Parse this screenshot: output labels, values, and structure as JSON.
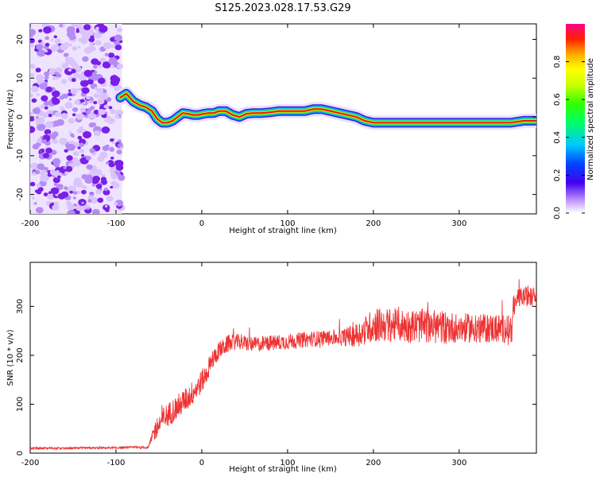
{
  "figure": {
    "title": "S125.2023.028.17.53.G29"
  },
  "chart_data": [
    {
      "type": "heatmap",
      "title": "",
      "xlabel": "Height of straight line (km)",
      "ylabel": "Frequency (Hz)",
      "xlim": [
        -200,
        390
      ],
      "ylim": [
        -25,
        24
      ],
      "xticks": [
        -200,
        -100,
        0,
        100,
        200,
        300
      ],
      "xtick_labels": [
        "-200",
        "-100",
        "0",
        "100",
        "200",
        "300"
      ],
      "yticks": [
        -20,
        -10,
        0,
        10,
        20
      ],
      "ytick_labels": [
        "-20",
        "-10",
        "0",
        "10",
        "20"
      ],
      "colorbar": {
        "label": "Normalized spectral amplitude",
        "range": [
          0,
          1
        ],
        "ticks": [
          0.0,
          0.2,
          0.4,
          0.6,
          0.8
        ],
        "tick_labels": [
          "0.0",
          "0.2",
          "0.4",
          "0.6",
          "0.8"
        ],
        "colormap": "rainbow"
      },
      "noise_region": {
        "x": [
          -200,
          -93
        ],
        "level": 0.25
      },
      "peak_frequency_trace": {
        "x": [
          -95,
          -88,
          -80,
          -72,
          -65,
          -58,
          -52,
          -46,
          -40,
          -34,
          -28,
          -22,
          -16,
          -10,
          -4,
          2,
          8,
          14,
          20,
          28,
          36,
          44,
          52,
          60,
          70,
          80,
          90,
          100,
          110,
          120,
          130,
          140,
          150,
          160,
          170,
          180,
          190,
          200,
          210,
          220,
          235,
          250,
          265,
          280,
          300,
          320,
          340,
          360,
          375,
          390
        ],
        "y": [
          5.0,
          6.0,
          4.0,
          3.0,
          2.5,
          1.5,
          -0.5,
          -1.5,
          -1.5,
          -1.0,
          0.0,
          1.0,
          0.8,
          0.5,
          0.5,
          0.8,
          1.0,
          1.0,
          1.5,
          1.5,
          0.5,
          0.0,
          0.8,
          1.0,
          1.0,
          1.2,
          1.5,
          1.5,
          1.5,
          1.5,
          2.0,
          2.0,
          1.5,
          1.0,
          0.5,
          0.0,
          -1.0,
          -1.5,
          -1.5,
          -1.5,
          -1.5,
          -1.5,
          -1.5,
          -1.5,
          -1.5,
          -1.5,
          -1.5,
          -1.5,
          -1.0,
          -1.0
        ]
      }
    },
    {
      "type": "line",
      "title": "",
      "xlabel": "Height of straight line (km)",
      "ylabel": "SNR (10 * v/v)",
      "xlim": [
        -200,
        390
      ],
      "ylim": [
        0,
        390
      ],
      "xticks": [
        -200,
        -100,
        0,
        100,
        200,
        300
      ],
      "xtick_labels": [
        "-200",
        "-100",
        "0",
        "100",
        "200",
        "300"
      ],
      "yticks": [
        0,
        100,
        200,
        300
      ],
      "ytick_labels": [
        "0",
        "100",
        "200",
        "300"
      ],
      "series": [
        {
          "color": "#ee3333",
          "x": [
            -200,
            -150,
            -100,
            -62,
            -55,
            -45,
            -35,
            -25,
            -15,
            -5,
            5,
            12,
            20,
            30,
            40,
            50,
            60,
            80,
            100,
            120,
            140,
            160,
            170,
            180,
            190,
            200,
            220,
            240,
            260,
            280,
            300,
            320,
            340,
            362,
            365,
            375,
            390
          ],
          "y": [
            10,
            10,
            11,
            12,
            45,
            70,
            85,
            100,
            115,
            135,
            160,
            190,
            210,
            222,
            228,
            225,
            222,
            225,
            228,
            232,
            235,
            236,
            238,
            242,
            250,
            262,
            262,
            260,
            260,
            258,
            256,
            255,
            255,
            255,
            315,
            320,
            320
          ],
          "noise": [
            2,
            2,
            2,
            3,
            20,
            25,
            25,
            25,
            25,
            25,
            22,
            20,
            18,
            18,
            16,
            16,
            16,
            16,
            16,
            16,
            16,
            16,
            20,
            25,
            30,
            35,
            35,
            35,
            35,
            35,
            30,
            30,
            30,
            30,
            20,
            20,
            20
          ]
        }
      ]
    }
  ]
}
